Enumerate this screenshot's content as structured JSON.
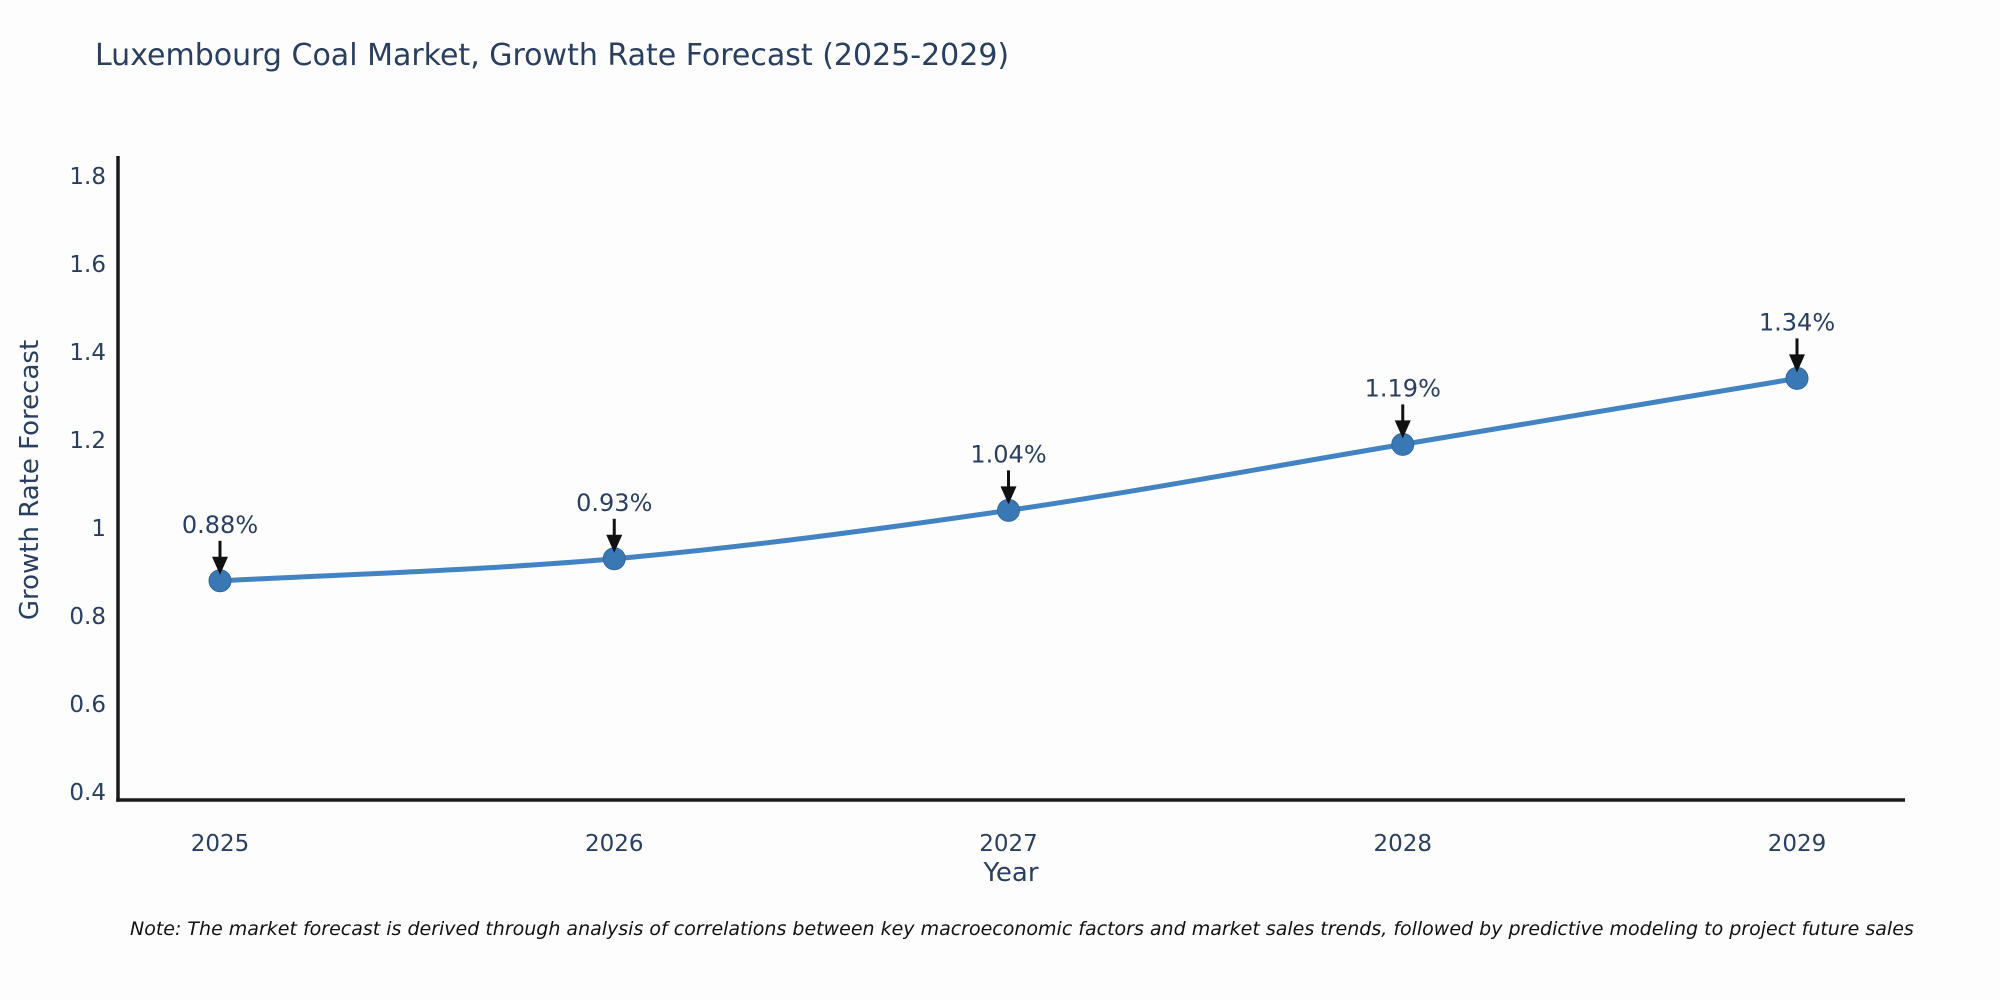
{
  "page": {
    "note": "Note: The market forecast is derived through analysis of correlations between key macroeconomic factors and market sales trends, followed by predictive modeling to project future sales"
  },
  "chart_data": {
    "type": "line",
    "title": "Luxembourg Coal Market, Growth Rate Forecast (2025-2029)",
    "xlabel": "Year",
    "ylabel": "Growth Rate Forecast",
    "categories": [
      "2025",
      "2026",
      "2027",
      "2028",
      "2029"
    ],
    "series": [
      {
        "name": "Growth Rate Forecast",
        "values": [
          0.88,
          0.93,
          1.04,
          1.19,
          1.34
        ]
      }
    ],
    "point_labels": [
      "0.88%",
      "0.93%",
      "1.04%",
      "1.19%",
      "1.34%"
    ],
    "ylim": [
      0.4,
      1.8
    ],
    "yticks": [
      0.4,
      0.6,
      0.8,
      1,
      1.2,
      1.4,
      1.6,
      1.8
    ],
    "ytick_labels": [
      "0.4",
      "0.6",
      "0.8",
      "1",
      "1.2",
      "1.4",
      "1.6",
      "1.8"
    ],
    "grid": false,
    "legend": "none",
    "annotations": "arrow-down-to-point",
    "colors": {
      "line": "#4383c2",
      "marker": "#3a78b5",
      "axis": "#1a1a1a",
      "text": "#2a3f5f",
      "annotation_arrow": "#111111",
      "background": "#fdfdfd"
    }
  }
}
